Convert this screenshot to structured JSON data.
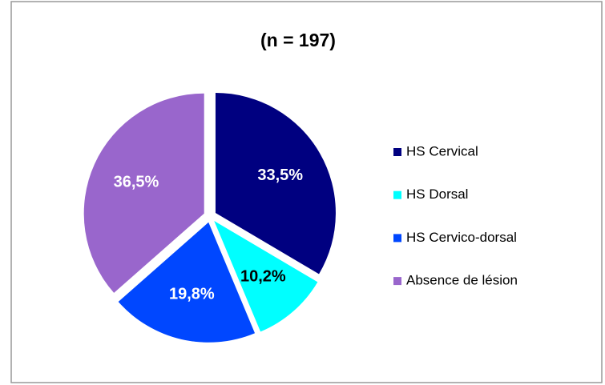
{
  "chart_data": {
    "type": "pie",
    "title": "(n = 197)",
    "categories": [
      "HS Cervical",
      "HS Dorsal",
      "HS Cervico-dorsal",
      "Absence de lésion"
    ],
    "values": [
      33.5,
      10.2,
      19.8,
      36.5
    ],
    "value_labels": [
      "33,5%",
      "10,2%",
      "19,8%",
      "36,5%"
    ],
    "colors": [
      "#000080",
      "#00ffff",
      "#0047ff",
      "#9966cc"
    ],
    "legend": "right"
  }
}
